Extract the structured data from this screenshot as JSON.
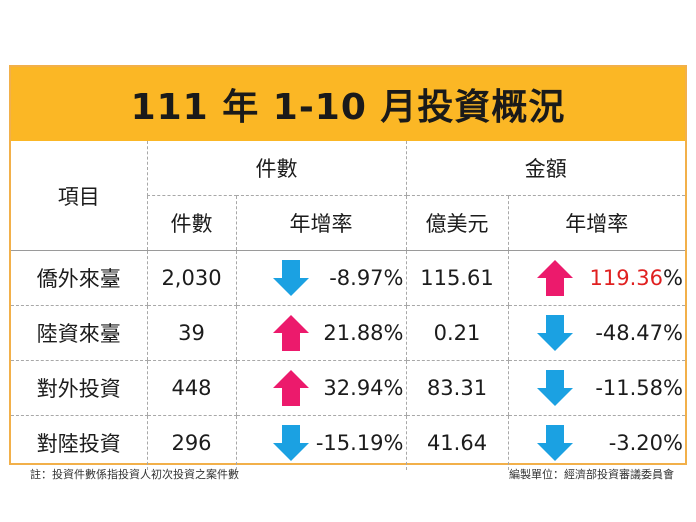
{
  "title": "111 年 1-10 月投資概況",
  "headers": {
    "item": "項目",
    "count_group": "件數",
    "amount_group": "金額",
    "count": "件數",
    "count_growth": "年增率",
    "amount_unit": "億美元",
    "amount_growth": "年增率"
  },
  "rows": [
    {
      "label": "僑外來臺",
      "count": "2,030",
      "count_dir": "down",
      "count_growth": "-8.97%",
      "amount": "115.61",
      "amount_dir": "up",
      "amount_growth_num": "119.36",
      "amount_growth_pct": "%"
    },
    {
      "label": "陸資來臺",
      "count": "39",
      "count_dir": "up",
      "count_growth": "21.88%",
      "amount": "0.21",
      "amount_dir": "down",
      "amount_growth_num": "-48.47",
      "amount_growth_pct": "%"
    },
    {
      "label": "對外投資",
      "count": "448",
      "count_dir": "up",
      "count_growth": "32.94%",
      "amount": "83.31",
      "amount_dir": "down",
      "amount_growth_num": "-11.58",
      "amount_growth_pct": "%"
    },
    {
      "label": "對陸投資",
      "count": "296",
      "count_dir": "down",
      "count_growth": "-15.19%",
      "amount": "41.64",
      "amount_dir": "down",
      "amount_growth_num": "-3.20",
      "amount_growth_pct": "%"
    }
  ],
  "colors": {
    "title_bg": "#fbb725",
    "up_arrow": "#ec1a6c",
    "down_arrow": "#1ba1e2",
    "highlight": "#e02020"
  },
  "footer": {
    "note": "註：投資件數係指投資人初次投資之案件數",
    "source": "編製單位：經濟部投資審議委員會"
  }
}
